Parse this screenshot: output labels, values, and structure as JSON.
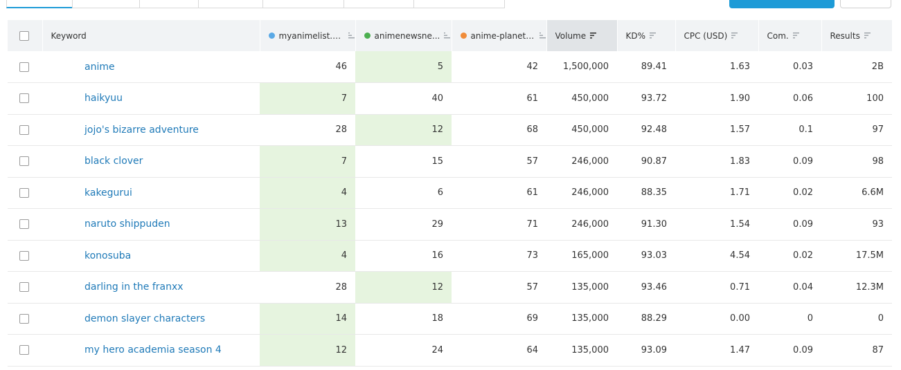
{
  "colors": {
    "site1": "#5aa9e6",
    "site2": "#4caf50",
    "site3": "#f08c3a",
    "highlight": "#e6f4df",
    "link": "#1f7ab8",
    "accent": "#1e9bd7"
  },
  "table": {
    "select_all_label": "",
    "headers": {
      "keyword": "Keyword",
      "site1": "myanimelist.net",
      "site2": "animenewsne...",
      "site3": "anime-planet....",
      "volume": "Volume",
      "kd": "KD%",
      "cpc": "CPC (USD)",
      "com": "Com.",
      "results": "Results"
    },
    "rows": [
      {
        "keyword": "anime",
        "site1": "46",
        "site2": "5",
        "site3": "42",
        "volume": "1,500,000",
        "kd": "89.41",
        "cpc": "1.63",
        "com": "0.03",
        "results": "2B",
        "best": "site2"
      },
      {
        "keyword": "haikyuu",
        "site1": "7",
        "site2": "40",
        "site3": "61",
        "volume": "450,000",
        "kd": "93.72",
        "cpc": "1.90",
        "com": "0.06",
        "results": "100",
        "best": "site1"
      },
      {
        "keyword": "jojo's bizarre adventure",
        "site1": "28",
        "site2": "12",
        "site3": "68",
        "volume": "450,000",
        "kd": "92.48",
        "cpc": "1.57",
        "com": "0.1",
        "results": "97",
        "best": "site2"
      },
      {
        "keyword": "black clover",
        "site1": "7",
        "site2": "15",
        "site3": "57",
        "volume": "246,000",
        "kd": "90.87",
        "cpc": "1.83",
        "com": "0.09",
        "results": "98",
        "best": "site1"
      },
      {
        "keyword": "kakegurui",
        "site1": "4",
        "site2": "6",
        "site3": "61",
        "volume": "246,000",
        "kd": "88.35",
        "cpc": "1.71",
        "com": "0.02",
        "results": "6.6M",
        "best": "site1"
      },
      {
        "keyword": "naruto shippuden",
        "site1": "13",
        "site2": "29",
        "site3": "71",
        "volume": "246,000",
        "kd": "91.30",
        "cpc": "1.54",
        "com": "0.09",
        "results": "93",
        "best": "site1"
      },
      {
        "keyword": "konosuba",
        "site1": "4",
        "site2": "16",
        "site3": "73",
        "volume": "165,000",
        "kd": "93.03",
        "cpc": "4.54",
        "com": "0.02",
        "results": "17.5M",
        "best": "site1"
      },
      {
        "keyword": "darling in the franxx",
        "site1": "28",
        "site2": "12",
        "site3": "57",
        "volume": "135,000",
        "kd": "93.46",
        "cpc": "0.71",
        "com": "0.04",
        "results": "12.3M",
        "best": "site2"
      },
      {
        "keyword": "demon slayer characters",
        "site1": "14",
        "site2": "18",
        "site3": "69",
        "volume": "135,000",
        "kd": "88.29",
        "cpc": "0.00",
        "com": "0",
        "results": "0",
        "best": "site1"
      },
      {
        "keyword": "my hero academia season 4",
        "site1": "12",
        "site2": "24",
        "site3": "64",
        "volume": "135,000",
        "kd": "93.09",
        "cpc": "1.47",
        "com": "0.09",
        "results": "87",
        "best": "site1"
      }
    ]
  },
  "icons": {
    "sort": "sort-lines-icon",
    "add": "plus-circle-icon"
  }
}
